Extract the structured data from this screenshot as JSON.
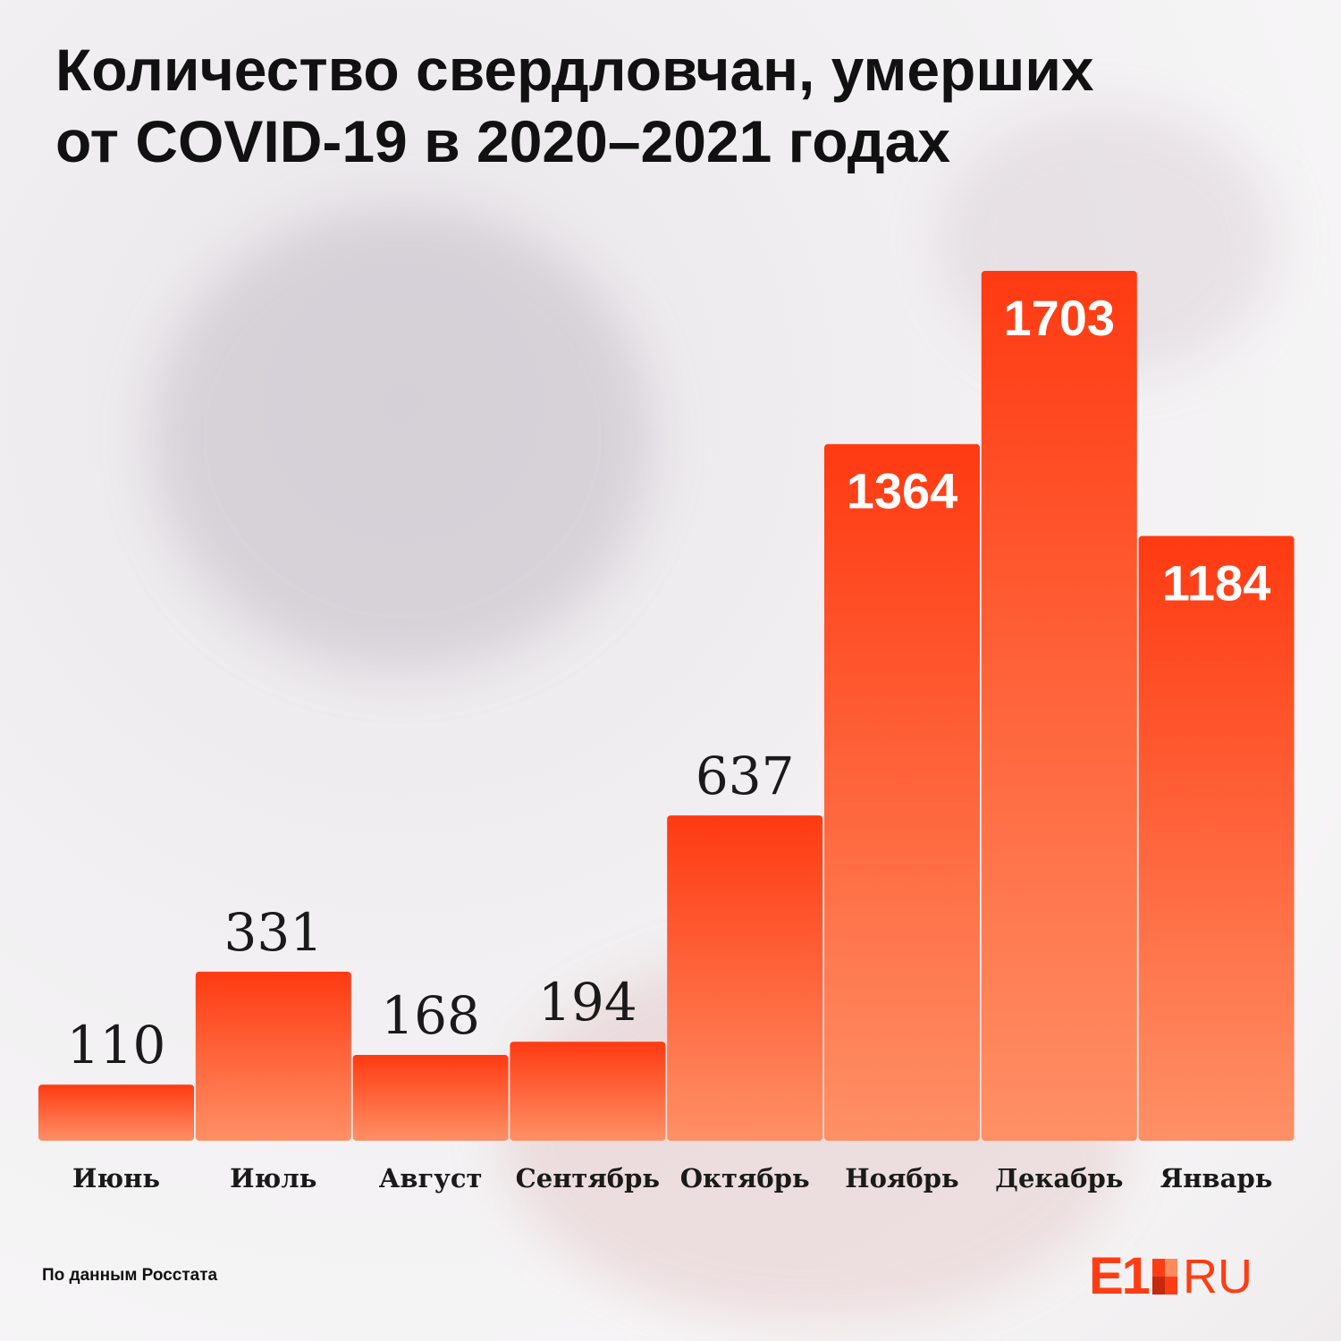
{
  "title_line1": "Количество свердловчан, умерших",
  "title_line2": "от COVID-19 в 2020–2021 годах",
  "source": "По данным Росстата",
  "logo": {
    "mark": "E1",
    "suffix": "RU"
  },
  "colors": {
    "bar_top": "#ff3a12",
    "bar_bottom": "#ff9066",
    "accent": "#ff3d14"
  },
  "chart_data": {
    "type": "bar",
    "title": "Количество свердловчан, умерших от COVID-19 в 2020–2021 годах",
    "categories": [
      "Июнь",
      "Июль",
      "Август",
      "Сентябрь",
      "Октябрь",
      "Ноябрь",
      "Декабрь",
      "Январь"
    ],
    "values": [
      110,
      331,
      168,
      194,
      637,
      1364,
      1703,
      1184
    ],
    "value_labels_inside_bar": [
      false,
      false,
      false,
      false,
      false,
      true,
      true,
      true
    ],
    "xlabel": "",
    "ylabel": "",
    "ylim": [
      0,
      1703
    ],
    "grid": false,
    "legend": "none"
  }
}
